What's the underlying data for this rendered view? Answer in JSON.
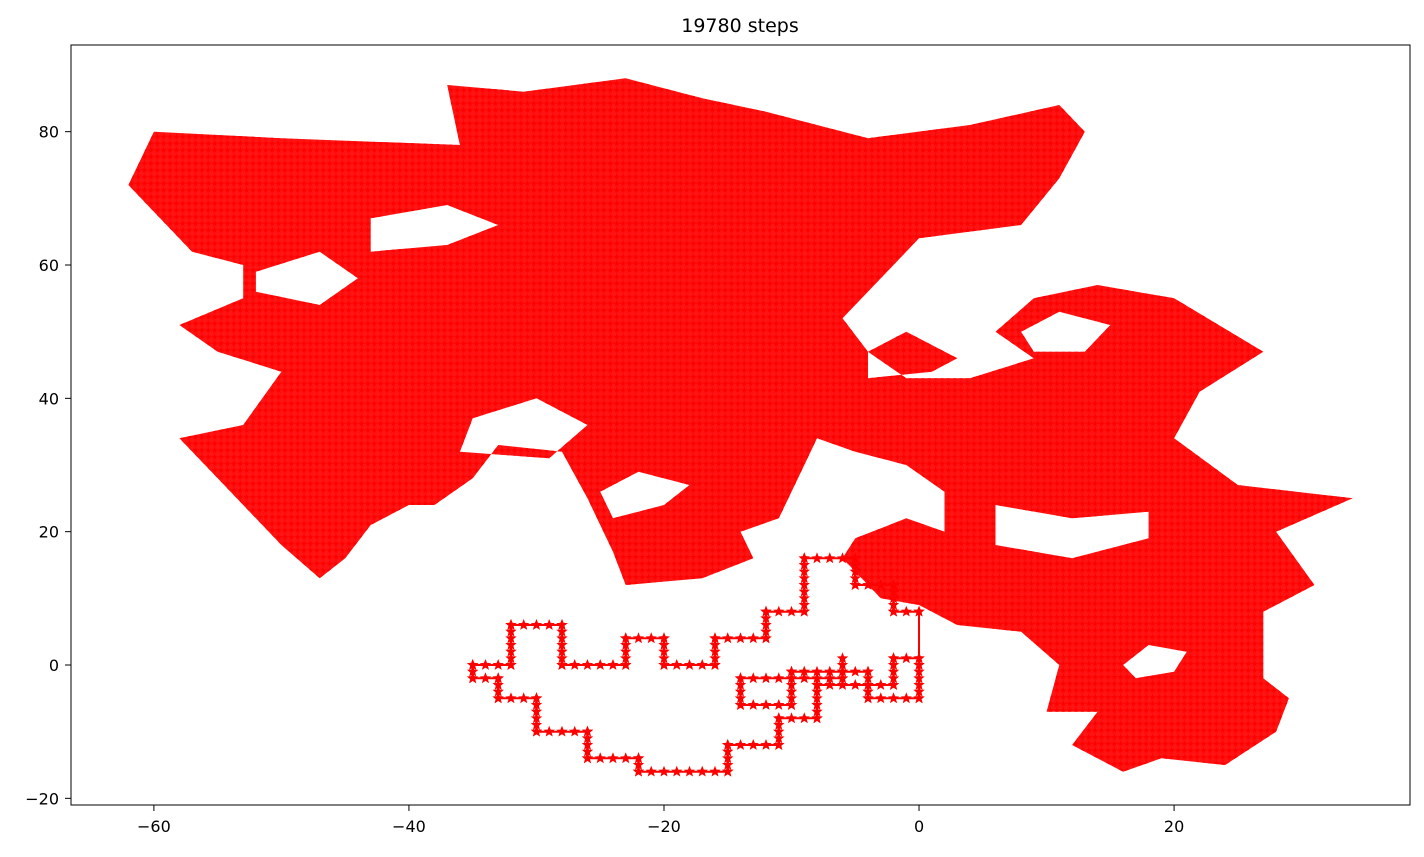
{
  "chart_data": {
    "type": "line",
    "title": "19780 steps",
    "xlabel": "",
    "ylabel": "",
    "xlim": [
      -66.5,
      38.5
    ],
    "ylim": [
      -21,
      93
    ],
    "xticks": [
      -60,
      -40,
      -20,
      0,
      20
    ],
    "yticks": [
      -20,
      0,
      20,
      40,
      60,
      80
    ],
    "xtick_labels": [
      "−60",
      "−40",
      "−20",
      "0",
      "20"
    ],
    "ytick_labels": [
      "−20",
      "0",
      "20",
      "40",
      "60",
      "80"
    ],
    "grid": false,
    "legend": "none",
    "series": [
      {
        "color": "#ff0000",
        "marker": "star",
        "steps": 19780,
        "start": [
          0,
          0
        ],
        "path_waypoints": [
          [
            0,
            0
          ],
          [
            0,
            8
          ],
          [
            -2,
            8
          ],
          [
            -2,
            12
          ],
          [
            -5,
            12
          ],
          [
            -5,
            16
          ],
          [
            -9,
            16
          ],
          [
            -9,
            8
          ],
          [
            -12,
            8
          ],
          [
            -12,
            4
          ],
          [
            -16,
            4
          ],
          [
            -16,
            0
          ],
          [
            -20,
            0
          ],
          [
            -20,
            4
          ],
          [
            -23,
            4
          ],
          [
            -23,
            0
          ],
          [
            -28,
            0
          ],
          [
            -28,
            6
          ],
          [
            -32,
            6
          ],
          [
            -32,
            0
          ],
          [
            -35,
            0
          ],
          [
            -35,
            -2
          ],
          [
            -33,
            -2
          ],
          [
            -33,
            -5
          ],
          [
            -30,
            -5
          ],
          [
            -30,
            -10
          ],
          [
            -26,
            -10
          ],
          [
            -26,
            -14
          ],
          [
            -22,
            -14
          ],
          [
            -22,
            -16
          ],
          [
            -15,
            -16
          ],
          [
            -15,
            -12
          ],
          [
            -11,
            -12
          ],
          [
            -11,
            -8
          ],
          [
            -8,
            -8
          ],
          [
            -8,
            -3
          ],
          [
            -2,
            -3
          ],
          [
            -2,
            1
          ],
          [
            0,
            1
          ],
          [
            0,
            -5
          ],
          [
            -4,
            -5
          ],
          [
            -4,
            -1
          ],
          [
            -10,
            -1
          ],
          [
            -10,
            -6
          ],
          [
            -14,
            -6
          ],
          [
            -14,
            -2
          ],
          [
            -6,
            -2
          ],
          [
            -6,
            1
          ]
        ],
        "visited_region_polygon": [
          [
            -62,
            72
          ],
          [
            -60,
            80
          ],
          [
            -50,
            79
          ],
          [
            -36,
            78
          ],
          [
            -37,
            87
          ],
          [
            -31,
            86
          ],
          [
            -23,
            88
          ],
          [
            -17,
            85
          ],
          [
            -12,
            83
          ],
          [
            -4,
            79
          ],
          [
            4,
            81
          ],
          [
            11,
            84
          ],
          [
            13,
            80
          ],
          [
            11,
            73
          ],
          [
            8,
            66
          ],
          [
            0,
            64
          ],
          [
            -2,
            60
          ],
          [
            -6,
            52
          ],
          [
            -4,
            47
          ],
          [
            -1,
            43
          ],
          [
            4,
            43
          ],
          [
            9,
            46
          ],
          [
            6,
            50
          ],
          [
            9,
            55
          ],
          [
            14,
            57
          ],
          [
            20,
            55
          ],
          [
            27,
            47
          ],
          [
            22,
            41
          ],
          [
            20,
            34
          ],
          [
            25,
            27
          ],
          [
            34,
            25
          ],
          [
            28,
            20
          ],
          [
            31,
            12
          ],
          [
            27,
            8
          ],
          [
            27,
            -2
          ],
          [
            29,
            -5
          ],
          [
            28,
            -10
          ],
          [
            24,
            -15
          ],
          [
            19,
            -14
          ],
          [
            16,
            -16
          ],
          [
            12,
            -12
          ],
          [
            14,
            -7
          ],
          [
            10,
            -7
          ],
          [
            11,
            0
          ],
          [
            8,
            5
          ],
          [
            3,
            6
          ],
          [
            0,
            9
          ],
          [
            -3,
            10
          ],
          [
            -6,
            16
          ],
          [
            -5,
            19
          ],
          [
            -1,
            22
          ],
          [
            2,
            20
          ],
          [
            2,
            26
          ],
          [
            -1,
            30
          ],
          [
            -5,
            32
          ],
          [
            -8,
            34
          ],
          [
            -9,
            30
          ],
          [
            -11,
            22
          ],
          [
            -14,
            20
          ],
          [
            -13,
            16
          ],
          [
            -17,
            13
          ],
          [
            -23,
            12
          ],
          [
            -24,
            17
          ],
          [
            -26,
            25
          ],
          [
            -28,
            32
          ],
          [
            -33,
            33
          ],
          [
            -35,
            28
          ],
          [
            -38,
            24
          ],
          [
            -40,
            24
          ],
          [
            -43,
            21
          ],
          [
            -45,
            16
          ],
          [
            -47,
            13
          ],
          [
            -50,
            18
          ],
          [
            -55,
            28
          ],
          [
            -58,
            34
          ],
          [
            -53,
            36
          ],
          [
            -50,
            44
          ],
          [
            -55,
            47
          ],
          [
            -58,
            51
          ],
          [
            -53,
            55
          ],
          [
            -53,
            60
          ],
          [
            -57,
            62
          ],
          [
            -60,
            68
          ],
          [
            -62,
            72
          ]
        ],
        "unvisited_holes": [
          [
            [
              -52,
              56
            ],
            [
              -47,
              54
            ],
            [
              -44,
              58
            ],
            [
              -47,
              62
            ],
            [
              -52,
              59
            ]
          ],
          [
            [
              -43,
              62
            ],
            [
              -37,
              63
            ],
            [
              -33,
              66
            ],
            [
              -37,
              69
            ],
            [
              -43,
              67
            ]
          ],
          [
            [
              -36,
              32
            ],
            [
              -29,
              31
            ],
            [
              -26,
              36
            ],
            [
              -30,
              40
            ],
            [
              -35,
              37
            ]
          ],
          [
            [
              -24,
              22
            ],
            [
              -20,
              24
            ],
            [
              -18,
              27
            ],
            [
              -22,
              29
            ],
            [
              -25,
              26
            ]
          ],
          [
            [
              -4,
              43
            ],
            [
              1,
              44
            ],
            [
              3,
              46
            ],
            [
              -1,
              50
            ],
            [
              -4,
              47
            ]
          ],
          [
            [
              9,
              47
            ],
            [
              13,
              47
            ],
            [
              15,
              51
            ],
            [
              11,
              53
            ],
            [
              8,
              50
            ]
          ],
          [
            [
              6,
              24
            ],
            [
              12,
              22
            ],
            [
              18,
              23
            ],
            [
              18,
              19
            ],
            [
              12,
              16
            ],
            [
              6,
              18
            ]
          ],
          [
            [
              17,
              -2
            ],
            [
              20,
              -1
            ],
            [
              21,
              2
            ],
            [
              18,
              3
            ],
            [
              16,
              0
            ]
          ]
        ]
      }
    ]
  }
}
